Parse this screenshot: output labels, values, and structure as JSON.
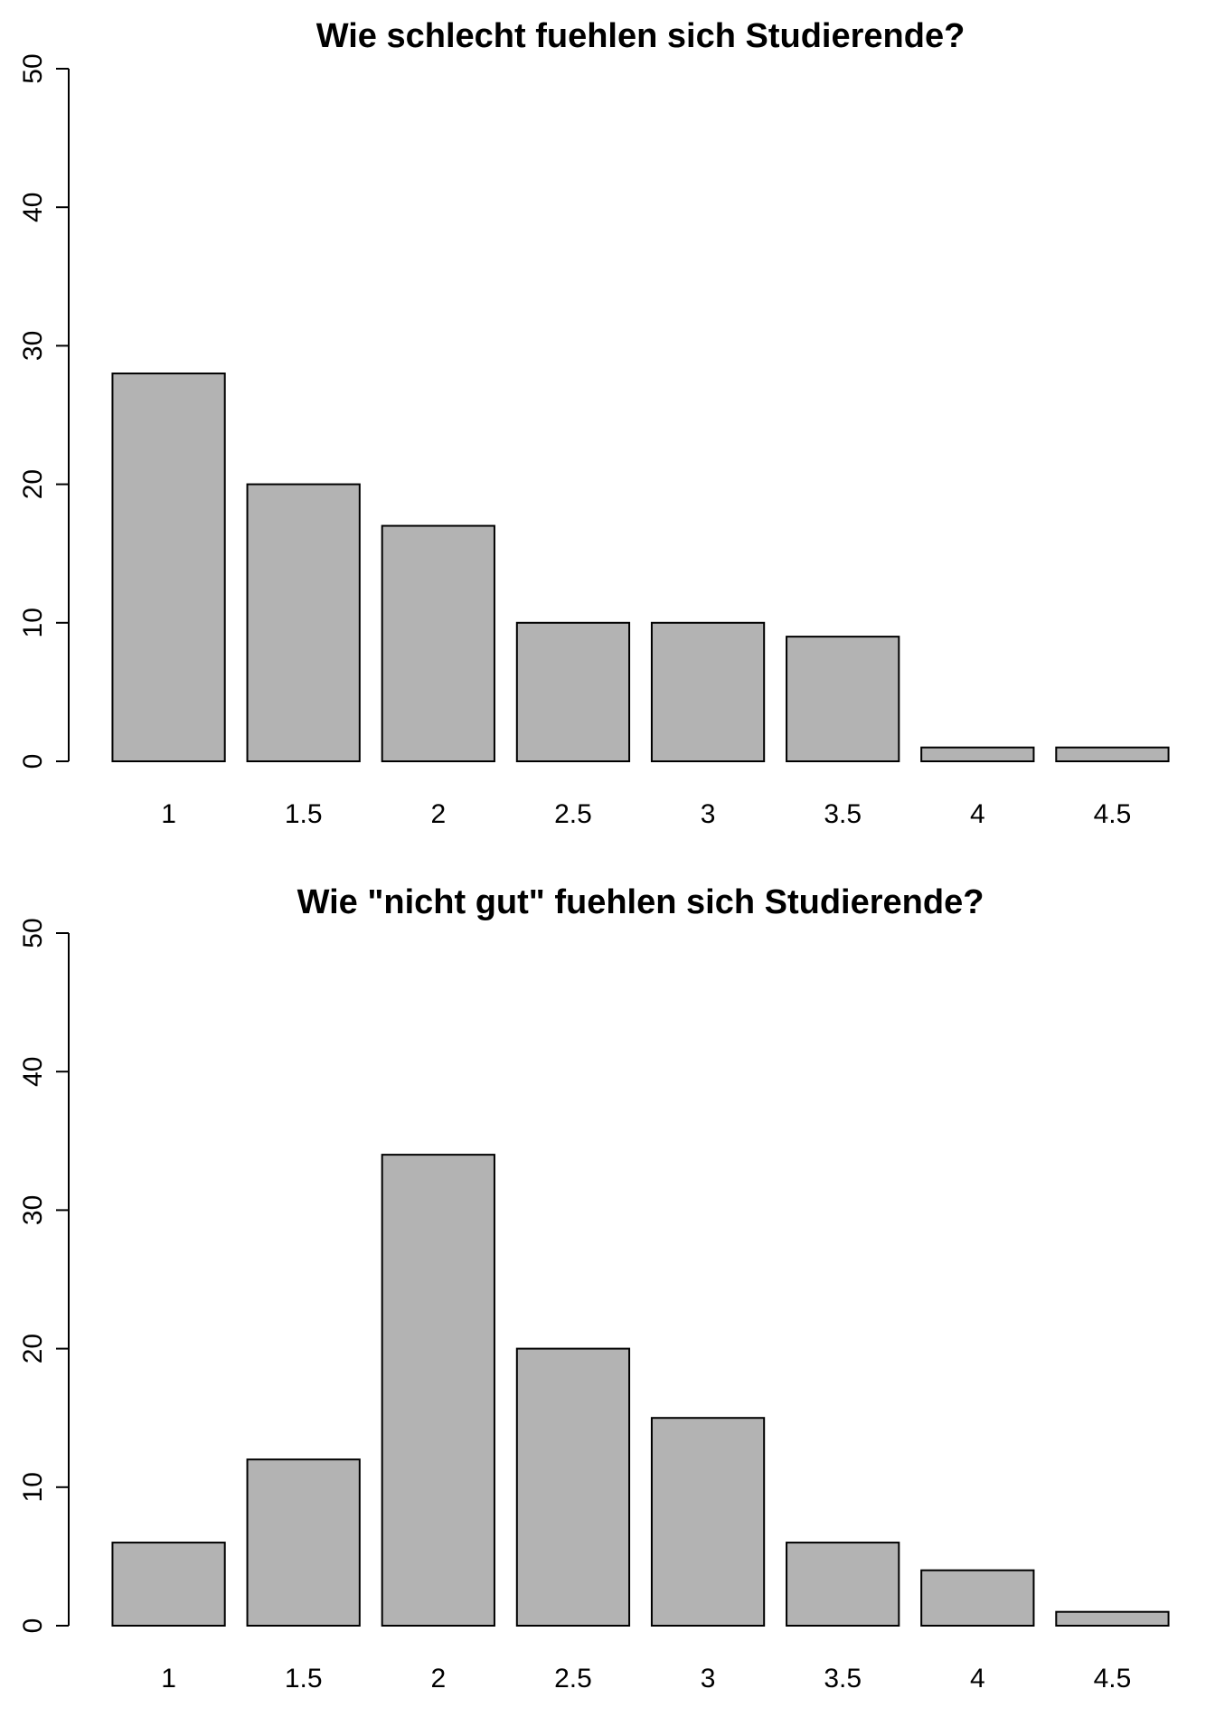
{
  "chart_data": [
    {
      "type": "bar",
      "title": "Wie schlecht fuehlen sich Studierende?",
      "xlabel": "",
      "ylabel": "",
      "categories": [
        "1",
        "1.5",
        "2",
        "2.5",
        "3",
        "3.5",
        "4",
        "4.5"
      ],
      "values": [
        28,
        20,
        17,
        10,
        10,
        9,
        1,
        1
      ],
      "ylim": [
        0,
        50
      ],
      "yticks": [
        "0",
        "10",
        "20",
        "30",
        "40",
        "50"
      ],
      "bar_color": "#b3b3b3",
      "grid": false
    },
    {
      "type": "bar",
      "title": "Wie \"nicht gut\" fuehlen sich Studierende?",
      "xlabel": "",
      "ylabel": "",
      "categories": [
        "1",
        "1.5",
        "2",
        "2.5",
        "3",
        "3.5",
        "4",
        "4.5"
      ],
      "values": [
        6,
        12,
        34,
        20,
        15,
        6,
        4,
        1
      ],
      "ylim": [
        0,
        50
      ],
      "yticks": [
        "0",
        "10",
        "20",
        "30",
        "40",
        "50"
      ],
      "bar_color": "#b3b3b3",
      "grid": false
    }
  ]
}
